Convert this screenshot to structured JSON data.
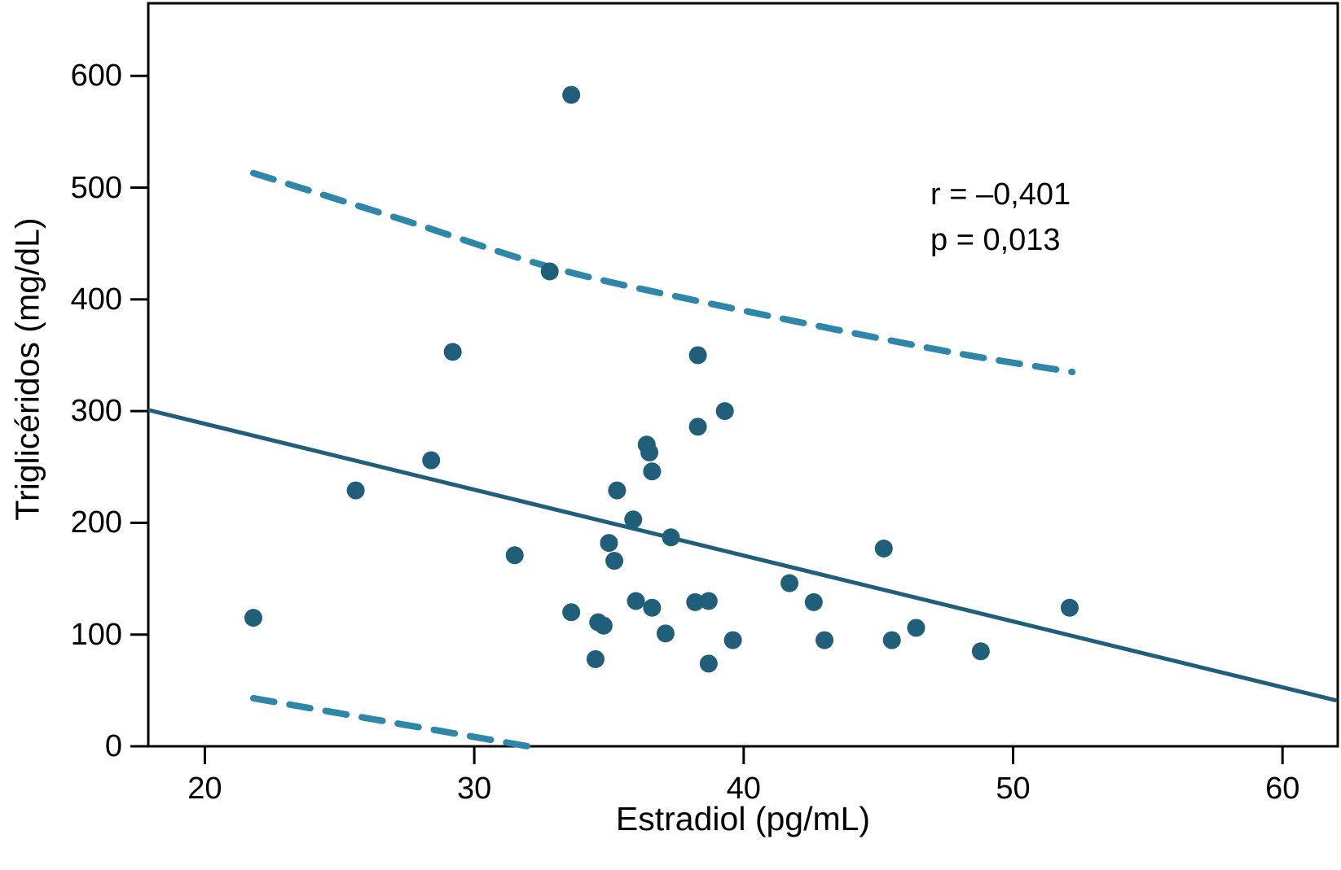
{
  "chart_data": {
    "type": "scatter",
    "title": "",
    "xlabel": "Estradiol (pg/mL)",
    "ylabel": "Triglicéridos (mg/dL)",
    "xlim": [
      17.9,
      62.05
    ],
    "ylim": [
      0,
      665
    ],
    "xticks": [
      "20",
      "30",
      "40",
      "50",
      "60"
    ],
    "xtick_values": [
      20,
      30,
      40,
      50,
      60
    ],
    "yticks": [
      "0",
      "100",
      "200",
      "300",
      "400",
      "500",
      "600"
    ],
    "ytick_values": [
      0,
      100,
      200,
      300,
      400,
      500,
      600
    ],
    "grid": false,
    "legend": "none",
    "annotation": {
      "r_label": "r = –0,401",
      "p_label": "p = 0,013"
    },
    "points": [
      [
        21.8,
        115
      ],
      [
        25.6,
        229
      ],
      [
        28.4,
        256
      ],
      [
        29.2,
        353
      ],
      [
        31.5,
        171
      ],
      [
        32.8,
        425
      ],
      [
        33.6,
        583
      ],
      [
        33.6,
        120
      ],
      [
        34.5,
        78
      ],
      [
        34.6,
        111
      ],
      [
        34.8,
        108
      ],
      [
        35.0,
        182
      ],
      [
        35.2,
        166
      ],
      [
        35.3,
        229
      ],
      [
        35.9,
        203
      ],
      [
        36.0,
        130
      ],
      [
        36.4,
        270
      ],
      [
        36.5,
        263
      ],
      [
        36.6,
        246
      ],
      [
        36.6,
        124
      ],
      [
        37.1,
        101
      ],
      [
        37.3,
        187
      ],
      [
        38.2,
        129
      ],
      [
        38.3,
        350
      ],
      [
        38.3,
        286
      ],
      [
        38.7,
        130
      ],
      [
        38.7,
        74
      ],
      [
        39.3,
        300
      ],
      [
        39.6,
        95
      ],
      [
        41.7,
        146
      ],
      [
        42.6,
        129
      ],
      [
        43.0,
        95
      ],
      [
        45.2,
        177
      ],
      [
        45.5,
        95
      ],
      [
        46.4,
        106
      ],
      [
        48.8,
        85
      ],
      [
        52.1,
        124
      ]
    ],
    "regression_line": {
      "x1": 17.9,
      "y1": 301,
      "x2": 62.0,
      "y2": 41
    },
    "confidence_band_upper": [
      [
        21.8,
        513
      ],
      [
        27.5,
        470
      ],
      [
        32.8,
        429
      ],
      [
        38.4,
        398
      ],
      [
        47.2,
        355
      ],
      [
        52.2,
        335
      ]
    ],
    "confidence_band_lower": [
      [
        21.8,
        43
      ],
      [
        26.3,
        24
      ],
      [
        32.0,
        0
      ]
    ],
    "colors": {
      "point": "#215e79",
      "regression_line": "#215e79",
      "confidence_band": "#2e86a9",
      "axis": "#000000",
      "background": "#ffffff"
    }
  }
}
